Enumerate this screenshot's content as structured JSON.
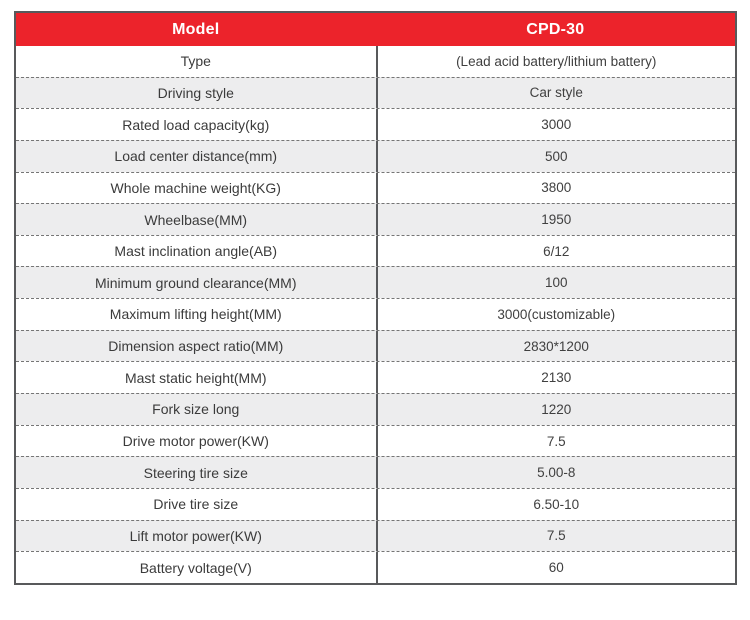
{
  "page": {
    "background": "#ffffff"
  },
  "colors": {
    "header_background": "#ec232b",
    "header_text": "#ffffff",
    "row_alternate_background": "#ededee",
    "outer_border": "#58595b",
    "column_divider": "#58595b",
    "dashed_separator": "#757575",
    "cell_text": "#3b3b3b"
  },
  "table": {
    "header": {
      "label": "Model",
      "value": "CPD-30"
    },
    "rows": [
      {
        "label": "Type",
        "value": "(Lead acid battery/lithium battery)"
      },
      {
        "label": "Driving style",
        "value": "Car style"
      },
      {
        "label": "Rated load capacity(kg)",
        "value": "3000"
      },
      {
        "label": "Load center distance(mm)",
        "value": "500"
      },
      {
        "label": "Whole machine weight(KG)",
        "value": "3800"
      },
      {
        "label": "Wheelbase(MM)",
        "value": "1950"
      },
      {
        "label": "Mast inclination angle(AB)",
        "value": "6/12"
      },
      {
        "label": "Minimum ground clearance(MM)",
        "value": "100"
      },
      {
        "label": "Maximum lifting height(MM)",
        "value": "3000(customizable)"
      },
      {
        "label": "Dimension aspect ratio(MM)",
        "value": "2830*1200"
      },
      {
        "label": "Mast static height(MM)",
        "value": "2130"
      },
      {
        "label": "Fork size long",
        "value": "1220"
      },
      {
        "label": "Drive motor power(KW)",
        "value": "7.5"
      },
      {
        "label": "Steering tire size",
        "value": "5.00-8"
      },
      {
        "label": "Drive tire size",
        "value": "6.50-10"
      },
      {
        "label": "Lift motor power(KW)",
        "value": "7.5"
      },
      {
        "label": "Battery voltage(V)",
        "value": "60"
      }
    ]
  }
}
